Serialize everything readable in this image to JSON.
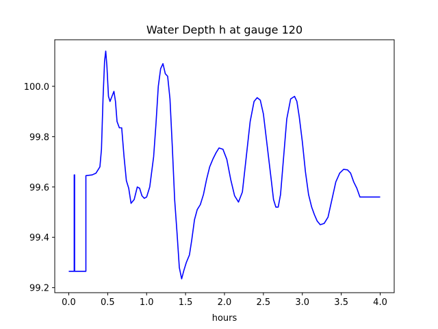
{
  "chart_data": {
    "type": "line",
    "title": "Water Depth h at gauge 120",
    "xlabel": "hours",
    "ylabel": "",
    "xlim": [
      -0.18,
      4.18
    ],
    "ylim": [
      99.18,
      100.185
    ],
    "xticks": [
      0.0,
      0.5,
      1.0,
      1.5,
      2.0,
      2.5,
      3.0,
      3.5,
      4.0
    ],
    "xtick_labels": [
      "0.0",
      "0.5",
      "1.0",
      "1.5",
      "2.0",
      "2.5",
      "3.0",
      "3.5",
      "4.0"
    ],
    "yticks": [
      99.2,
      99.4,
      99.6,
      99.8,
      100.0
    ],
    "ytick_labels": [
      "99.2",
      "99.4",
      "99.6",
      "99.8",
      "100.0"
    ],
    "grid": false,
    "legend": "none",
    "series": [
      {
        "color": "#0000ff",
        "x": [
          0.0,
          0.07,
          0.07,
          0.075,
          0.075,
          0.08,
          0.08,
          0.22,
          0.22,
          0.3,
          0.35,
          0.4,
          0.42,
          0.44,
          0.46,
          0.475,
          0.49,
          0.51,
          0.53,
          0.555,
          0.58,
          0.6,
          0.62,
          0.65,
          0.68,
          0.71,
          0.74,
          0.77,
          0.8,
          0.84,
          0.88,
          0.91,
          0.94,
          0.97,
          1.0,
          1.04,
          1.09,
          1.12,
          1.15,
          1.18,
          1.21,
          1.24,
          1.27,
          1.3,
          1.33,
          1.36,
          1.39,
          1.42,
          1.45,
          1.48,
          1.51,
          1.55,
          1.58,
          1.615,
          1.65,
          1.69,
          1.73,
          1.77,
          1.81,
          1.85,
          1.89,
          1.93,
          1.98,
          2.03,
          2.08,
          2.13,
          2.18,
          2.23,
          2.28,
          2.33,
          2.38,
          2.42,
          2.46,
          2.5,
          2.55,
          2.6,
          2.63,
          2.66,
          2.69,
          2.72,
          2.76,
          2.8,
          2.85,
          2.9,
          2.93,
          2.96,
          3.0,
          3.04,
          3.08,
          3.12,
          3.155,
          3.19,
          3.23,
          3.28,
          3.33,
          3.38,
          3.43,
          3.48,
          3.53,
          3.58,
          3.62,
          3.66,
          3.7,
          3.74,
          3.78,
          3.82,
          3.86,
          3.9,
          3.94,
          4.0
        ],
        "y": [
          99.265,
          99.265,
          99.648,
          99.648,
          99.265,
          99.265,
          99.265,
          99.265,
          99.645,
          99.648,
          99.655,
          99.68,
          99.75,
          99.95,
          100.1,
          100.14,
          100.08,
          99.96,
          99.94,
          99.96,
          99.98,
          99.94,
          99.86,
          99.835,
          99.835,
          99.72,
          99.625,
          99.595,
          99.535,
          99.55,
          99.6,
          99.595,
          99.565,
          99.555,
          99.56,
          99.6,
          99.72,
          99.85,
          100.0,
          100.07,
          100.09,
          100.05,
          100.04,
          99.95,
          99.76,
          99.55,
          99.42,
          99.28,
          99.235,
          99.27,
          99.3,
          99.33,
          99.39,
          99.47,
          99.51,
          99.53,
          99.57,
          99.63,
          99.68,
          99.71,
          99.735,
          99.755,
          99.75,
          99.71,
          99.63,
          99.565,
          99.54,
          99.58,
          99.72,
          99.86,
          99.94,
          99.955,
          99.945,
          99.89,
          99.76,
          99.63,
          99.55,
          99.52,
          99.52,
          99.57,
          99.72,
          99.87,
          99.95,
          99.96,
          99.94,
          99.88,
          99.78,
          99.66,
          99.57,
          99.52,
          99.49,
          99.465,
          99.45,
          99.455,
          99.48,
          99.55,
          99.62,
          99.655,
          99.67,
          99.668,
          99.655,
          99.62,
          99.595,
          99.56,
          99.56,
          99.56,
          99.56,
          99.56,
          99.56,
          99.56
        ]
      }
    ]
  }
}
